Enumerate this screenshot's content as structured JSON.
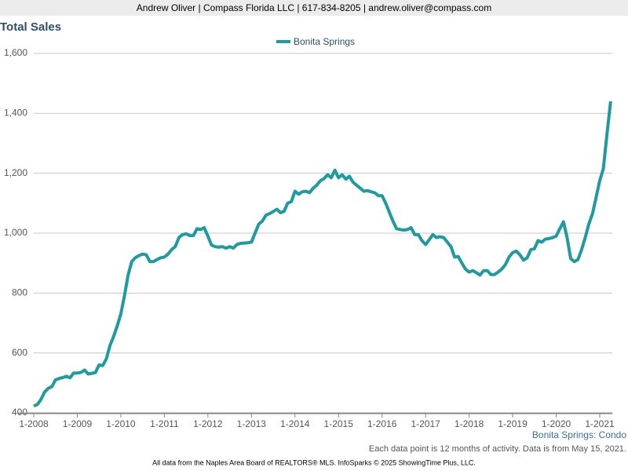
{
  "header": "Andrew Oliver | Compass Florida LLC | 617-834-8205 | andrew.oliver@compass.com",
  "chart_data": {
    "type": "line",
    "title": "Total Sales",
    "categories": [
      "1-2008",
      null,
      null,
      null,
      null,
      null,
      null,
      null,
      null,
      null,
      null,
      null,
      "1-2009",
      null,
      null,
      null,
      null,
      null,
      null,
      null,
      null,
      null,
      null,
      null,
      "1-2010",
      null,
      null,
      null,
      null,
      null,
      null,
      null,
      null,
      null,
      null,
      null,
      "1-2011",
      null,
      null,
      null,
      null,
      null,
      null,
      null,
      null,
      null,
      null,
      null,
      "1-2012",
      null,
      null,
      null,
      null,
      null,
      null,
      null,
      null,
      null,
      null,
      null,
      "1-2013",
      null,
      null,
      null,
      null,
      null,
      null,
      null,
      null,
      null,
      null,
      null,
      "1-2014",
      null,
      null,
      null,
      null,
      null,
      null,
      null,
      null,
      null,
      null,
      null,
      "1-2015",
      null,
      null,
      null,
      null,
      null,
      null,
      null,
      null,
      null,
      null,
      null,
      "1-2016",
      null,
      null,
      null,
      null,
      null,
      null,
      null,
      null,
      null,
      null,
      null,
      "1-2017",
      null,
      null,
      null,
      null,
      null,
      null,
      null,
      null,
      null,
      null,
      null,
      "1-2018",
      null,
      null,
      null,
      null,
      null,
      null,
      null,
      null,
      null,
      null,
      null,
      "1-2019",
      null,
      null,
      null,
      null,
      null,
      null,
      null,
      null,
      null,
      null,
      null,
      "1-2020",
      null,
      null,
      null,
      null,
      null,
      null,
      null,
      null,
      null,
      null,
      null,
      "1-2021",
      null,
      null,
      null
    ],
    "series": [
      {
        "name": "Bonita Springs",
        "color": "#1f9aa0",
        "values": [
          423,
          428,
          445,
          470,
          482,
          488,
          510,
          515,
          518,
          522,
          517,
          533,
          533,
          535,
          543,
          530,
          532,
          535,
          560,
          558,
          580,
          625,
          655,
          690,
          730,
          790,
          860,
          905,
          918,
          925,
          930,
          928,
          905,
          905,
          912,
          918,
          920,
          930,
          945,
          955,
          985,
          995,
          998,
          992,
          992,
          1015,
          1012,
          1018,
          990,
          960,
          955,
          953,
          955,
          950,
          955,
          950,
          962,
          966,
          967,
          968,
          970,
          1000,
          1030,
          1040,
          1060,
          1065,
          1072,
          1080,
          1068,
          1073,
          1100,
          1105,
          1140,
          1130,
          1138,
          1140,
          1135,
          1150,
          1160,
          1175,
          1182,
          1195,
          1185,
          1210,
          1185,
          1195,
          1180,
          1190,
          1170,
          1160,
          1150,
          1140,
          1142,
          1138,
          1135,
          1125,
          1125,
          1100,
          1070,
          1040,
          1015,
          1012,
          1010,
          1012,
          1018,
          995,
          995,
          975,
          962,
          978,
          995,
          985,
          988,
          985,
          970,
          955,
          920,
          922,
          900,
          880,
          870,
          875,
          868,
          860,
          875,
          875,
          862,
          862,
          870,
          880,
          895,
          920,
          935,
          940,
          928,
          910,
          918,
          945,
          948,
          975,
          970,
          980,
          982,
          985,
          990,
          1015,
          1038,
          985,
          915,
          905,
          912,
          945,
          985,
          1030,
          1065,
          1120,
          1175,
          1215,
          1330,
          1440
        ]
      }
    ],
    "ylim": [
      400,
      1600
    ],
    "yticks": [
      400,
      600,
      800,
      {
        "value": 1000,
        "label": "1,000"
      },
      {
        "value": 1200,
        "label": "1,200"
      },
      {
        "value": 1400,
        "label": "1,400"
      },
      {
        "value": 1600,
        "label": "1,600"
      }
    ],
    "grid": true,
    "subtitle": "Bonita Springs: Condo",
    "note": "Each data point is 12 months of activity. Data is from May 15, 2021."
  },
  "footer": "All data from the Naples Area Board of REALTORS® MLS. InfoSparks © 2025 ShowingTime Plus, LLC."
}
